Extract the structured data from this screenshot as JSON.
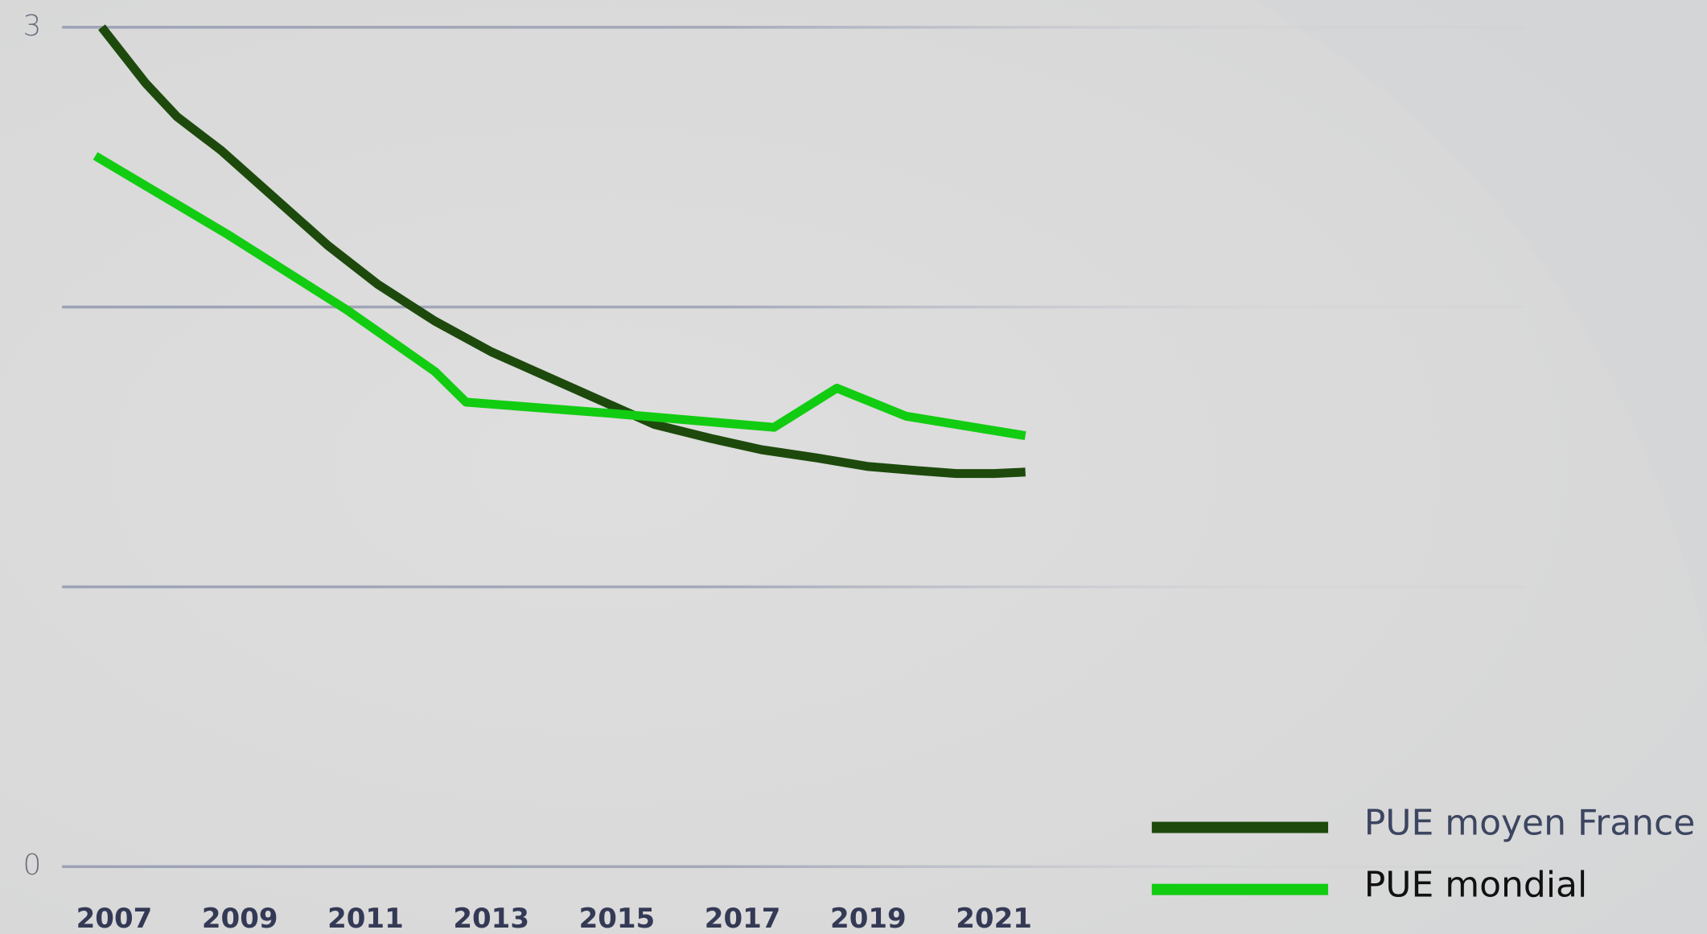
{
  "chart_data": {
    "type": "line",
    "x": [],
    "series": [
      {
        "name": "PUE moyen France",
        "color": "#1d4a0c",
        "x": [
          2006.8,
          2007.5,
          2008.0,
          2008.7,
          2009.5,
          2010.4,
          2011.2,
          2012.1,
          2013.0,
          2013.9,
          2014.8,
          2015.6,
          2016.5,
          2017.3,
          2018.2,
          2019.0,
          2019.8,
          2020.4,
          2021.0,
          2021.5
        ],
        "values": [
          3.0,
          2.8,
          2.68,
          2.56,
          2.4,
          2.22,
          2.08,
          1.95,
          1.84,
          1.75,
          1.66,
          1.58,
          1.53,
          1.49,
          1.46,
          1.43,
          1.415,
          1.405,
          1.405,
          1.41
        ]
      },
      {
        "name": "PUE mondial",
        "color": "#12cc12",
        "x": [
          2006.7,
          2008.8,
          2010.7,
          2012.1,
          2012.6,
          2014.9,
          2017.5,
          2018.5,
          2019.6,
          2021.5
        ],
        "values": [
          2.54,
          2.26,
          1.99,
          1.77,
          1.66,
          1.62,
          1.57,
          1.71,
          1.61,
          1.54
        ]
      }
    ],
    "xlim": [
      2006.17,
      2023.2
    ],
    "xticks": [
      2007,
      2009,
      2011,
      2013,
      2015,
      2017,
      2019,
      2021
    ],
    "ylim": [
      0,
      3
    ],
    "yticks": [
      0,
      3
    ],
    "ygrid": [
      0,
      1,
      2,
      3
    ],
    "grid": true,
    "legend": "lower right"
  }
}
